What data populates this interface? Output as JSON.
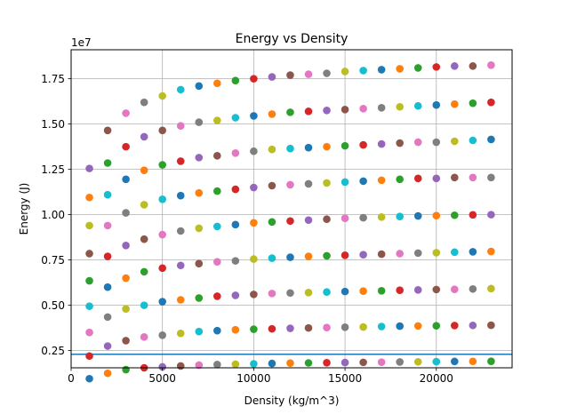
{
  "chart_data": {
    "type": "scatter",
    "title": "Energy vs Density",
    "xlabel": "Density (kg/m^3)",
    "ylabel": "Energy (J)",
    "y_offset_label": "1e7",
    "xlim": [
      0,
      24150
    ],
    "ylim": [
      1550000,
      19100000
    ],
    "x_ticks": [
      0,
      5000,
      10000,
      15000,
      20000
    ],
    "x_tick_labels": [
      "0",
      "5000",
      "10000",
      "15000",
      "20000"
    ],
    "y_ticks": [
      2500000,
      5000000,
      7500000,
      10000000,
      12500000,
      15000000,
      17500000
    ],
    "y_tick_labels": [
      "0.25",
      "0.50",
      "0.75",
      "1.00",
      "1.25",
      "1.50",
      "1.75"
    ],
    "grid": true,
    "hline": 2300000,
    "hline_color": "#1f77b4",
    "palette": [
      "#1f77b4",
      "#ff7f0e",
      "#2ca02c",
      "#d62728",
      "#9467bd",
      "#8c564b",
      "#e377c2",
      "#7f7f7f",
      "#bcbd22",
      "#17becf"
    ],
    "x": [
      1000,
      2000,
      3000,
      4000,
      5000,
      6000,
      7000,
      8000,
      9000,
      10000,
      11000,
      12000,
      13000,
      14000,
      15000,
      16000,
      17000,
      18000,
      19000,
      20000,
      21000,
      22000,
      23000
    ],
    "series": [
      {
        "values": [
          950000,
          1250000,
          1450000,
          1550000,
          1600000,
          1650000,
          1700000,
          1730000,
          1750000,
          1770000,
          1790000,
          1810000,
          1820000,
          1830000,
          1840000,
          1850000,
          1860000,
          1870000,
          1880000,
          1890000,
          1900000,
          1905000,
          1910000
        ]
      },
      {
        "values": [
          2200000,
          2750000,
          3050000,
          3250000,
          3350000,
          3450000,
          3550000,
          3600000,
          3650000,
          3680000,
          3700000,
          3730000,
          3750000,
          3770000,
          3790000,
          3800000,
          3830000,
          3850000,
          3860000,
          3870000,
          3880000,
          3890000,
          3900000
        ]
      },
      {
        "values": [
          3500000,
          4350000,
          4800000,
          5000000,
          5200000,
          5300000,
          5400000,
          5500000,
          5550000,
          5600000,
          5650000,
          5680000,
          5700000,
          5730000,
          5760000,
          5780000,
          5800000,
          5830000,
          5850000,
          5870000,
          5880000,
          5900000,
          5920000
        ]
      },
      {
        "values": [
          4950000,
          6000000,
          6500000,
          6850000,
          7050000,
          7200000,
          7300000,
          7400000,
          7450000,
          7550000,
          7600000,
          7650000,
          7700000,
          7730000,
          7760000,
          7790000,
          7820000,
          7850000,
          7880000,
          7900000,
          7930000,
          7950000,
          7970000
        ]
      },
      {
        "values": [
          6350000,
          7700000,
          8300000,
          8650000,
          8900000,
          9100000,
          9250000,
          9350000,
          9450000,
          9550000,
          9600000,
          9650000,
          9700000,
          9750000,
          9800000,
          9830000,
          9870000,
          9900000,
          9930000,
          9950000,
          9970000,
          9990000,
          10000000
        ]
      },
      {
        "values": [
          7850000,
          9400000,
          10100000,
          10550000,
          10850000,
          11050000,
          11200000,
          11300000,
          11400000,
          11500000,
          11600000,
          11650000,
          11700000,
          11750000,
          11800000,
          11850000,
          11900000,
          11950000,
          12000000,
          12000000,
          12050000,
          12050000,
          12050000
        ]
      },
      {
        "values": [
          9400000,
          11100000,
          11950000,
          12450000,
          12750000,
          12950000,
          13150000,
          13250000,
          13400000,
          13500000,
          13600000,
          13650000,
          13700000,
          13750000,
          13800000,
          13850000,
          13900000,
          13950000,
          14000000,
          14000000,
          14050000,
          14100000,
          14150000
        ]
      },
      {
        "values": [
          10950000,
          12850000,
          13750000,
          14300000,
          14650000,
          14900000,
          15100000,
          15200000,
          15350000,
          15450000,
          15550000,
          15650000,
          15700000,
          15750000,
          15800000,
          15850000,
          15900000,
          15950000,
          16000000,
          16050000,
          16100000,
          16150000,
          16200000
        ]
      },
      {
        "values": [
          12550000,
          14650000,
          15600000,
          16200000,
          16550000,
          16900000,
          17100000,
          17250000,
          17400000,
          17500000,
          17600000,
          17700000,
          17750000,
          17800000,
          17900000,
          17950000,
          18000000,
          18050000,
          18100000,
          18150000,
          18200000,
          18200000,
          18250000
        ]
      }
    ]
  }
}
